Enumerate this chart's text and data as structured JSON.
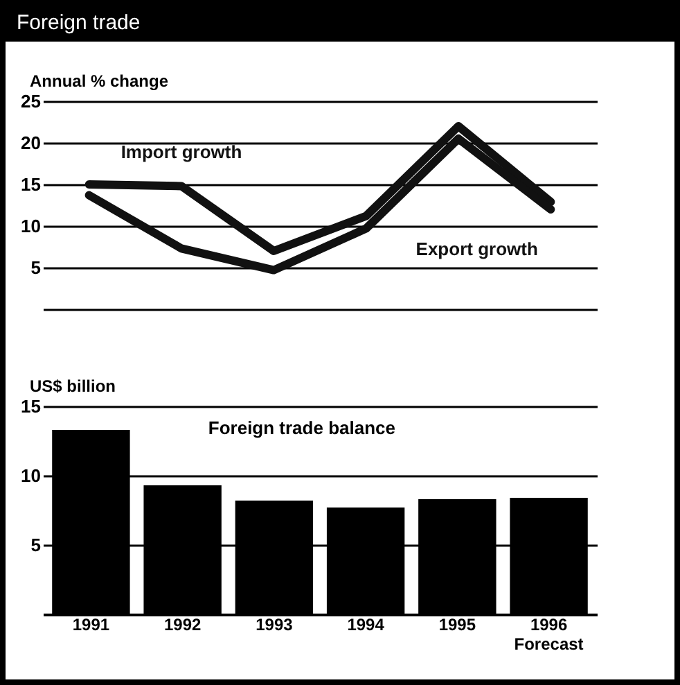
{
  "chart_data": [
    {
      "type": "line",
      "title": "Foreign trade",
      "ylabel": "Annual % change",
      "categories": [
        "1991",
        "1992",
        "1993",
        "1994",
        "1995",
        "1996"
      ],
      "series": [
        {
          "name": "Import growth",
          "color": "#111111",
          "values": [
            15,
            14.8,
            7,
            11.2,
            22,
            12.9
          ]
        },
        {
          "name": "Export growth",
          "color": "#111111",
          "values": [
            13.7,
            7.3,
            4.7,
            9.7,
            20.5,
            12
          ]
        }
      ],
      "ylim": [
        0,
        25
      ],
      "yticks": [
        {
          "value": 0,
          "label": null
        },
        5,
        10,
        15,
        20,
        25
      ],
      "grid": "y",
      "tick_labels": "y"
    },
    {
      "type": "bar",
      "ylabel": "US$ billion",
      "categories": [
        "1991",
        "1992",
        "1993",
        "1994",
        "1995",
        "1996 Forecast"
      ],
      "series": [
        {
          "name": "Foreign trade balance",
          "color": "#000000",
          "values": [
            13.3,
            9.3,
            8.2,
            7.7,
            8.3,
            8.4
          ]
        }
      ],
      "ylim": [
        0,
        15
      ],
      "yticks": [
        {
          "value": 0,
          "label": null
        },
        5,
        10,
        15
      ],
      "grid": "y"
    }
  ]
}
